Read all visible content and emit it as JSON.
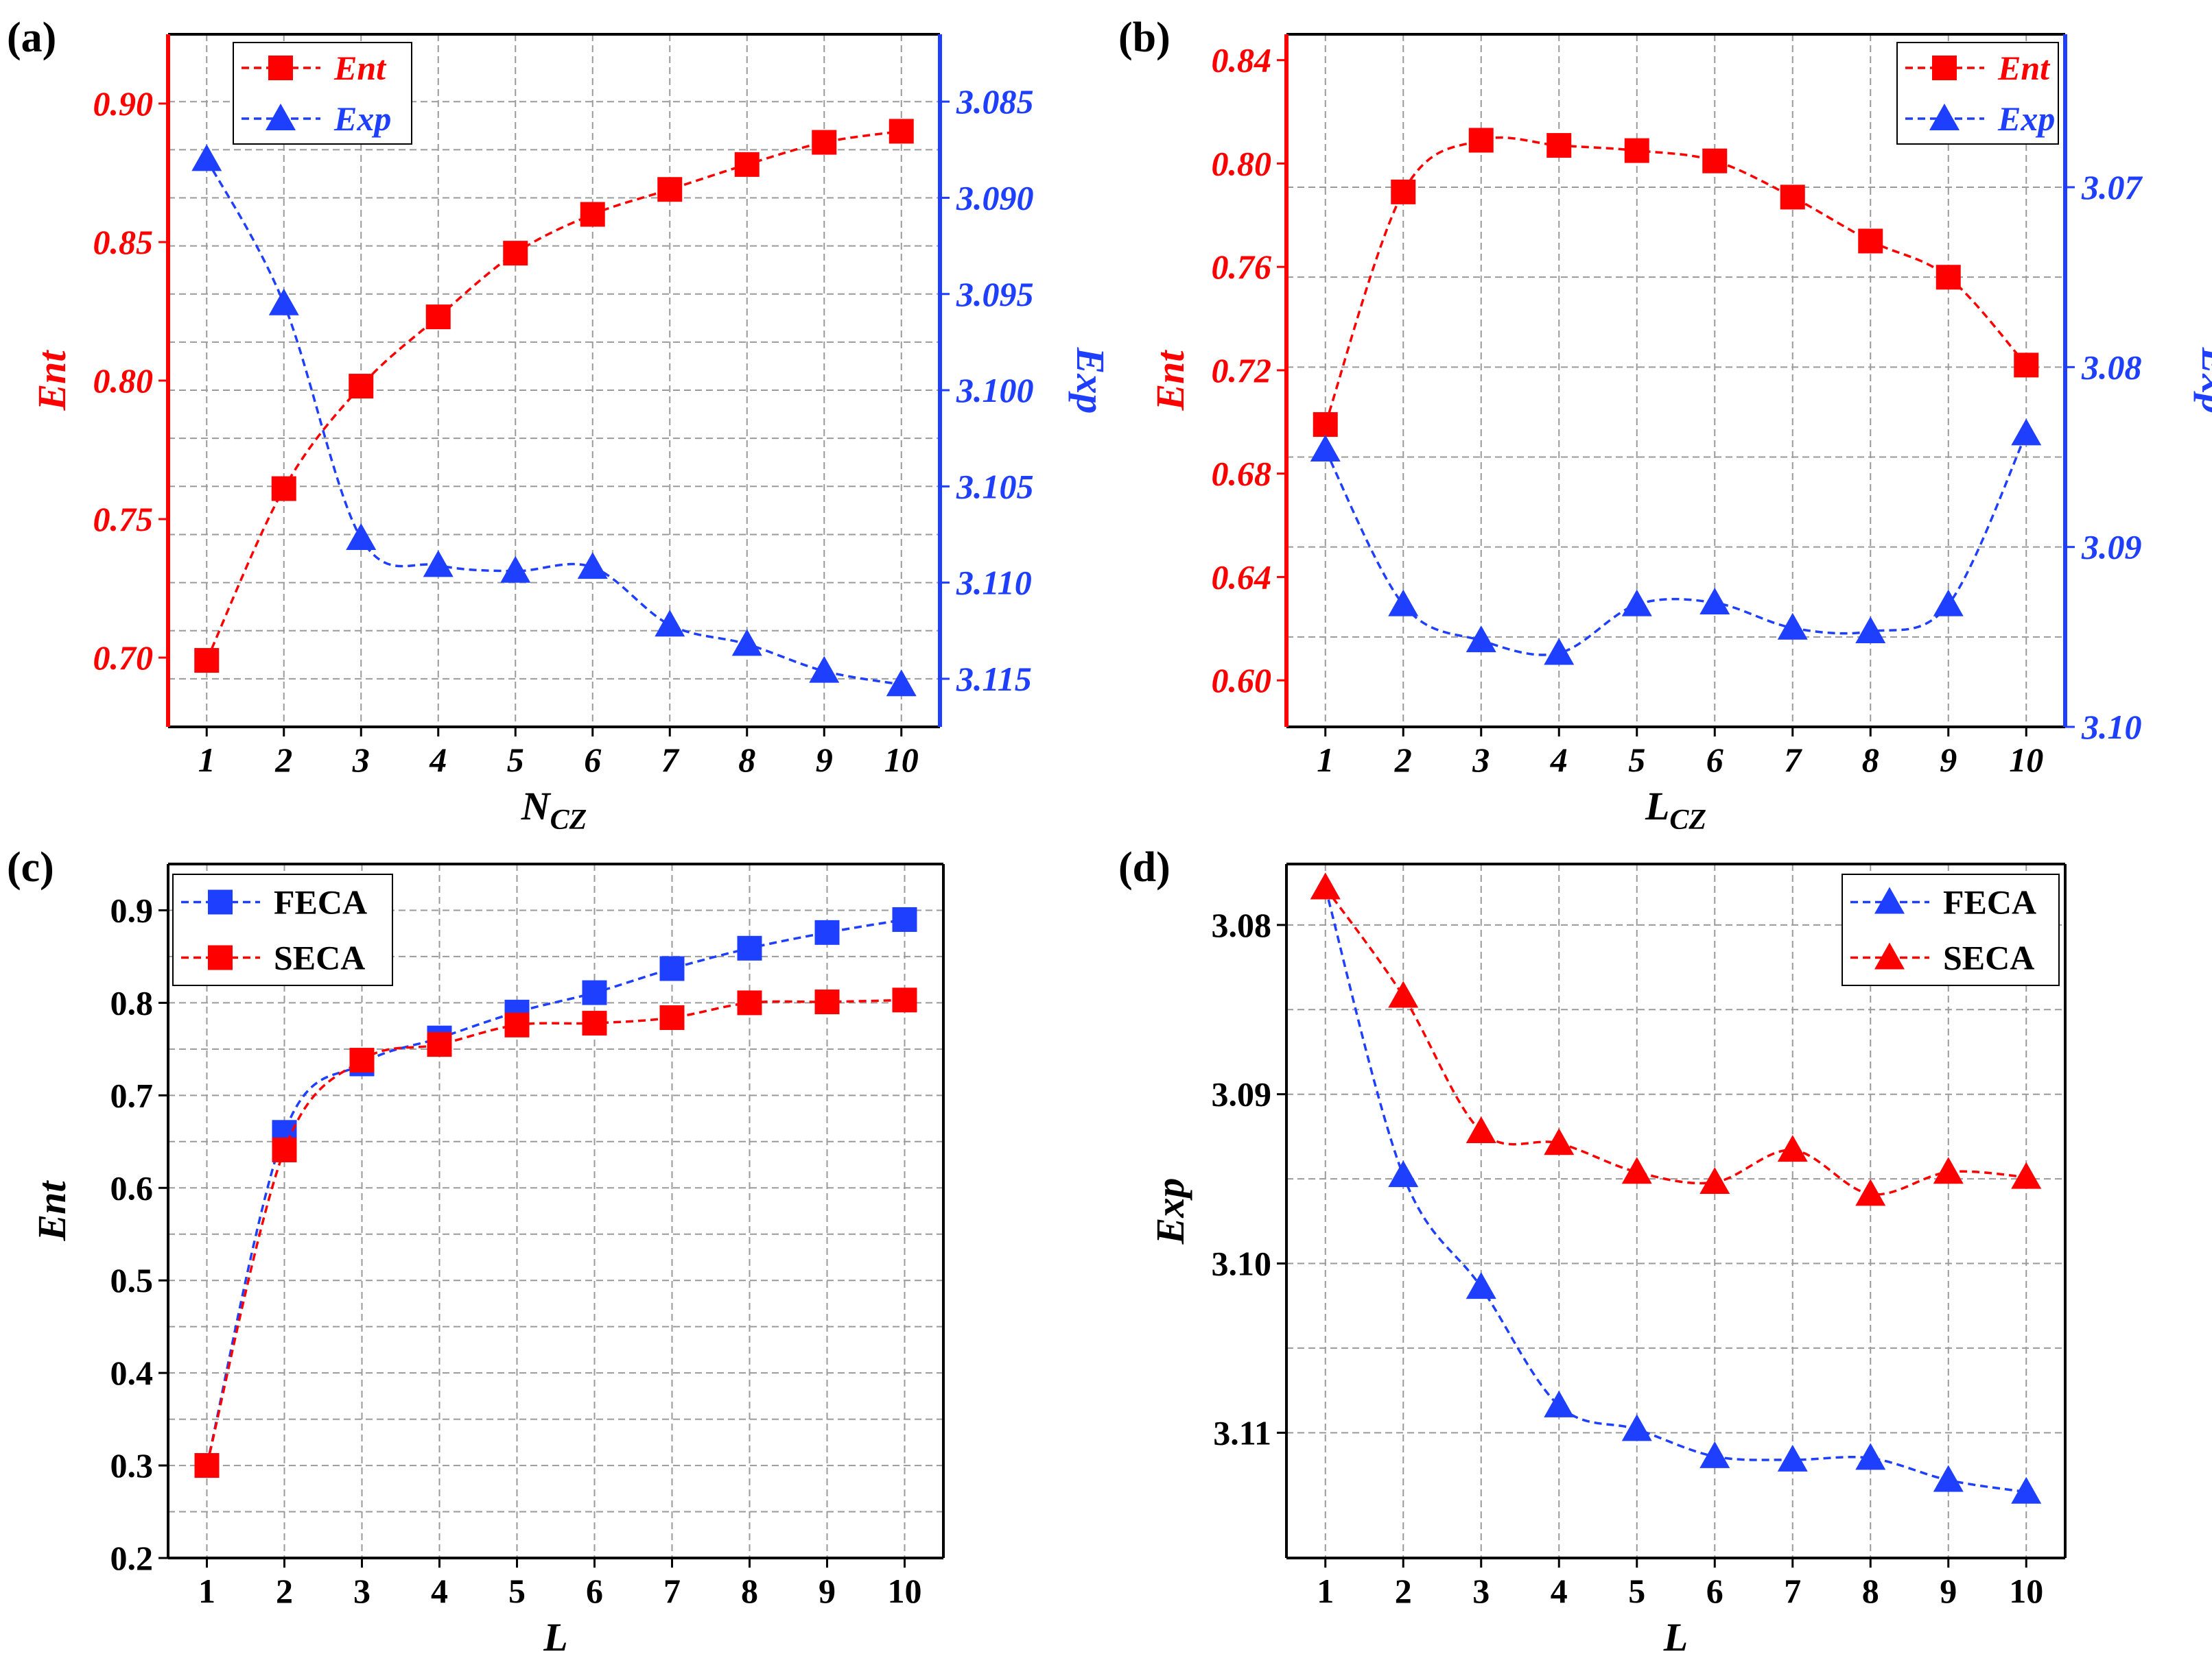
{
  "colors": {
    "red": "#ff0000",
    "blue": "#1f3fff",
    "grid": "#9a9a9a",
    "axis": "#000000"
  },
  "chart_data": [
    {
      "panel": "(a)",
      "type": "line",
      "x": [
        1,
        2,
        3,
        4,
        5,
        6,
        7,
        8,
        9,
        10
      ],
      "xticks": [
        "1",
        "2",
        "3",
        "4",
        "5",
        "6",
        "7",
        "8",
        "9",
        "10"
      ],
      "xlabel": "N",
      "xlabel_sub": "CZ",
      "ylabel": "Ent",
      "y2label": "Exp",
      "ylim": [
        0.675,
        0.925
      ],
      "yticks": [
        "0.70",
        "0.75",
        "0.80",
        "0.85",
        "0.90"
      ],
      "yticks_values": [
        0.7,
        0.75,
        0.8,
        0.85,
        0.9
      ],
      "y2lim": [
        3.0815,
        3.1175
      ],
      "y2_reversed": true,
      "y2ticks": [
        "3.085",
        "3.090",
        "3.095",
        "3.100",
        "3.105",
        "3.110",
        "3.115"
      ],
      "y2ticks_values": [
        3.085,
        3.09,
        3.095,
        3.1,
        3.105,
        3.11,
        3.115
      ],
      "legend": [
        "Ent",
        "Exp"
      ],
      "legend_position": "top-left",
      "series": [
        {
          "name": "Ent",
          "axis": "left",
          "marker": "square",
          "color": "#ff0000",
          "values": [
            0.699,
            0.761,
            0.798,
            0.823,
            0.846,
            0.86,
            0.869,
            0.878,
            0.886,
            0.89
          ]
        },
        {
          "name": "Exp",
          "axis": "right",
          "marker": "triangle",
          "color": "#1f3fff",
          "values": [
            3.088,
            3.0955,
            3.1077,
            3.1091,
            3.1094,
            3.1092,
            3.1122,
            3.1132,
            3.1146,
            3.1153
          ]
        }
      ]
    },
    {
      "panel": "(b)",
      "type": "line",
      "x": [
        1,
        2,
        3,
        4,
        5,
        6,
        7,
        8,
        9,
        10
      ],
      "xticks": [
        "1",
        "2",
        "3",
        "4",
        "5",
        "6",
        "7",
        "8",
        "9",
        "10"
      ],
      "xlabel": "L",
      "xlabel_sub": "CZ",
      "ylabel": "Ent",
      "y2label": "Exp",
      "ylim": [
        0.582,
        0.85
      ],
      "yticks": [
        "0.60",
        "0.64",
        "0.68",
        "0.72",
        "0.76",
        "0.80",
        "0.84"
      ],
      "yticks_values": [
        0.6,
        0.64,
        0.68,
        0.72,
        0.76,
        0.8,
        0.84
      ],
      "y2lim": [
        3.0615,
        3.1
      ],
      "y2_reversed": true,
      "y2ticks": [
        "3.07",
        "3.08",
        "3.09",
        "3.10"
      ],
      "y2ticks_values": [
        3.07,
        3.08,
        3.09,
        3.1
      ],
      "legend": [
        "Ent",
        "Exp"
      ],
      "legend_position": "top-right",
      "series": [
        {
          "name": "Ent",
          "axis": "left",
          "marker": "square",
          "color": "#ff0000",
          "values": [
            0.699,
            0.789,
            0.809,
            0.807,
            0.805,
            0.801,
            0.787,
            0.77,
            0.756,
            0.722
          ]
        },
        {
          "name": "Exp",
          "axis": "right",
          "marker": "triangle",
          "color": "#1f3fff",
          "values": [
            3.0846,
            3.0932,
            3.0952,
            3.0959,
            3.0932,
            3.0931,
            3.0945,
            3.0947,
            3.0932,
            3.0837
          ]
        }
      ]
    },
    {
      "panel": "(c)",
      "type": "line",
      "x": [
        1,
        2,
        3,
        4,
        5,
        6,
        7,
        8,
        9,
        10
      ],
      "xticks": [
        "1",
        "2",
        "3",
        "4",
        "5",
        "6",
        "7",
        "8",
        "9",
        "10"
      ],
      "xlabel": "L",
      "ylabel": "Ent",
      "ylim": [
        0.2,
        0.95
      ],
      "yticks": [
        "0.2",
        "0.3",
        "0.4",
        "0.5",
        "0.6",
        "0.7",
        "0.8",
        "0.9"
      ],
      "yticks_values": [
        0.2,
        0.3,
        0.4,
        0.5,
        0.6,
        0.7,
        0.8,
        0.9
      ],
      "legend": [
        "FECA",
        "SECA"
      ],
      "legend_position": "top-left",
      "series": [
        {
          "name": "FECA",
          "marker": "square",
          "color": "#1f3fff",
          "values": [
            0.3,
            0.66,
            0.734,
            0.762,
            0.79,
            0.811,
            0.837,
            0.859,
            0.876,
            0.89
          ]
        },
        {
          "name": "SECA",
          "marker": "square",
          "color": "#ff0000",
          "values": [
            0.3,
            0.641,
            0.738,
            0.755,
            0.776,
            0.778,
            0.784,
            0.8,
            0.801,
            0.803
          ]
        }
      ]
    },
    {
      "panel": "(d)",
      "type": "line",
      "x": [
        1,
        2,
        3,
        4,
        5,
        6,
        7,
        8,
        9,
        10
      ],
      "xticks": [
        "1",
        "2",
        "3",
        "4",
        "5",
        "6",
        "7",
        "8",
        "9",
        "10"
      ],
      "xlabel": "L",
      "ylabel": "Exp",
      "ylim": [
        3.0764,
        3.1174
      ],
      "y_reversed": true,
      "yticks": [
        "3.08",
        "3.09",
        "3.10",
        "3.11"
      ],
      "yticks_values": [
        3.08,
        3.09,
        3.1,
        3.11
      ],
      "legend": [
        "FECA",
        "SECA"
      ],
      "legend_position": "top-right",
      "series": [
        {
          "name": "FECA",
          "marker": "triangle",
          "color": "#1f3fff",
          "values": [
            3.0778,
            3.0948,
            3.1014,
            3.1084,
            3.1098,
            3.1114,
            3.1116,
            3.1115,
            3.1128,
            3.1135
          ]
        },
        {
          "name": "SECA",
          "marker": "triangle",
          "color": "#ff0000",
          "values": [
            3.0778,
            3.0842,
            3.0922,
            3.0929,
            3.0946,
            3.0952,
            3.0933,
            3.0959,
            3.0946,
            3.0949
          ]
        }
      ]
    }
  ]
}
